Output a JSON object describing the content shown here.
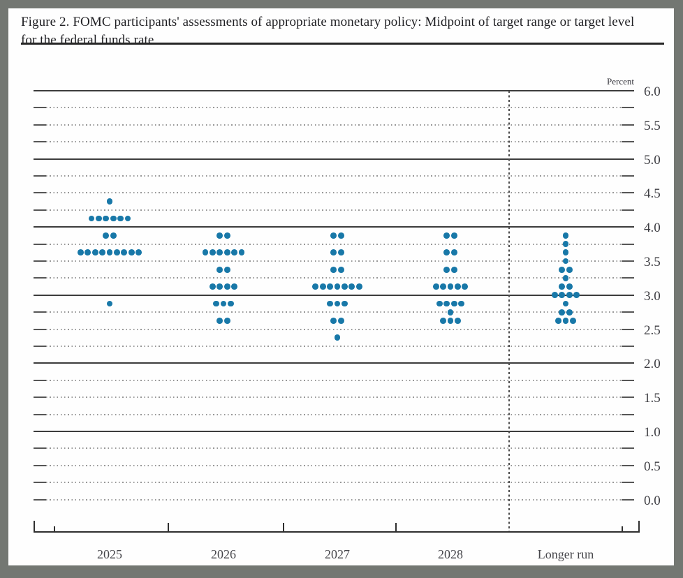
{
  "page": {
    "title": "Figure 2. FOMC participants' assessments of appropriate monetary policy: Midpoint of target range or target level for the federal funds rate"
  },
  "chart_data": {
    "type": "scatter",
    "subtype": "fomc-dot-plot",
    "title": "Figure 2. FOMC participants' assessments of appropriate monetary policy: Midpoint of target range or target level for the federal funds rate",
    "ylabel": "Percent",
    "xlabel": "",
    "ylim": [
      0.0,
      6.0
    ],
    "y_tick_labels": [
      "6.0",
      "5.5",
      "5.0",
      "4.5",
      "4.0",
      "3.5",
      "3.0",
      "2.5",
      "2.0",
      "1.5",
      "1.0",
      "0.5",
      "0.0"
    ],
    "gridline_step": 0.25,
    "solid_gridlines": [
      6.0,
      5.0,
      4.0,
      3.0,
      2.0,
      1.0
    ],
    "grid": "dotted quarter-point lines with solid end caps; solid lines at whole percents",
    "legend_position": "none",
    "dot_color": "#1878a8",
    "categories": [
      "2025",
      "2026",
      "2027",
      "2028",
      "Longer run"
    ],
    "separator_before_category": "Longer run",
    "participants_per_column": 19,
    "series": [
      {
        "category": "2025",
        "dots": [
          {
            "value": 4.375,
            "count": 1
          },
          {
            "value": 4.125,
            "count": 6
          },
          {
            "value": 3.875,
            "count": 2
          },
          {
            "value": 3.625,
            "count": 9
          },
          {
            "value": 2.875,
            "count": 1
          }
        ]
      },
      {
        "category": "2026",
        "dots": [
          {
            "value": 3.875,
            "count": 2
          },
          {
            "value": 3.625,
            "count": 6
          },
          {
            "value": 3.375,
            "count": 2
          },
          {
            "value": 3.125,
            "count": 4
          },
          {
            "value": 2.875,
            "count": 3
          },
          {
            "value": 2.625,
            "count": 2
          }
        ]
      },
      {
        "category": "2027",
        "dots": [
          {
            "value": 3.875,
            "count": 2
          },
          {
            "value": 3.625,
            "count": 2
          },
          {
            "value": 3.375,
            "count": 2
          },
          {
            "value": 3.125,
            "count": 7
          },
          {
            "value": 2.875,
            "count": 3
          },
          {
            "value": 2.625,
            "count": 2
          },
          {
            "value": 2.375,
            "count": 1
          }
        ]
      },
      {
        "category": "2028",
        "dots": [
          {
            "value": 3.875,
            "count": 2
          },
          {
            "value": 3.625,
            "count": 2
          },
          {
            "value": 3.375,
            "count": 2
          },
          {
            "value": 3.125,
            "count": 5
          },
          {
            "value": 2.875,
            "count": 4
          },
          {
            "value": 2.75,
            "count": 1
          },
          {
            "value": 2.625,
            "count": 3
          }
        ]
      },
      {
        "category": "Longer run",
        "dots": [
          {
            "value": 3.875,
            "count": 1
          },
          {
            "value": 3.75,
            "count": 1
          },
          {
            "value": 3.625,
            "count": 1
          },
          {
            "value": 3.5,
            "count": 1
          },
          {
            "value": 3.375,
            "count": 2
          },
          {
            "value": 3.25,
            "count": 1
          },
          {
            "value": 3.125,
            "count": 2
          },
          {
            "value": 3.0,
            "count": 4
          },
          {
            "value": 2.875,
            "count": 1
          },
          {
            "value": 2.75,
            "count": 2
          },
          {
            "value": 2.625,
            "count": 3
          }
        ]
      }
    ]
  }
}
